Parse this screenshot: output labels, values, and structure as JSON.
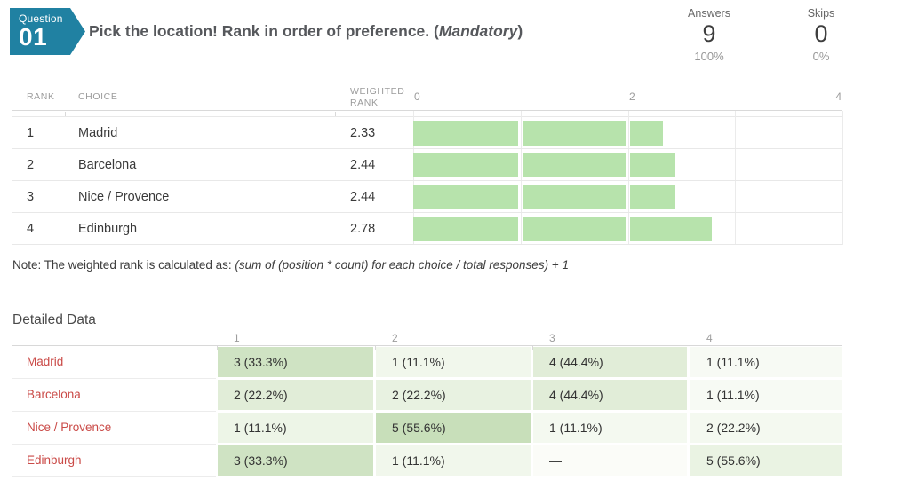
{
  "question": {
    "badge_label": "Question",
    "badge_number": "01",
    "title_prefix": "Pick the location! Rank in order of preference. (",
    "title_em": "Mandatory",
    "title_suffix": ")",
    "stats": [
      {
        "label": "Answers",
        "value": "9",
        "pct": "100%"
      },
      {
        "label": "Skips",
        "value": "0",
        "pct": "0%"
      }
    ]
  },
  "rank_table": {
    "headers": {
      "rank": "RANK",
      "choice": "CHOICE",
      "weighted": "WEIGHTED RANK"
    },
    "axis": {
      "ticks": [
        "0",
        "2",
        "4"
      ],
      "max": 4
    },
    "bar_color": "#b7e3ac",
    "rows": [
      {
        "rank": "1",
        "choice": "Madrid",
        "weighted": "2.33",
        "value": 2.33
      },
      {
        "rank": "2",
        "choice": "Barcelona",
        "weighted": "2.44",
        "value": 2.44
      },
      {
        "rank": "3",
        "choice": "Nice / Provence",
        "weighted": "2.44",
        "value": 2.44
      },
      {
        "rank": "4",
        "choice": "Edinburgh",
        "weighted": "2.78",
        "value": 2.78
      }
    ]
  },
  "note": {
    "prefix": "Note: The weighted rank is calculated as: ",
    "formula": "(sum of (position * count) for each choice / total responses) + 1"
  },
  "detailed": {
    "heading": "Detailed Data",
    "columns": [
      "1",
      "2",
      "3",
      "4"
    ],
    "rows": [
      {
        "label": "Madrid",
        "cells": [
          {
            "text": "3 (33.3%)",
            "bg": "#cfe3c3"
          },
          {
            "text": "1 (11.1%)",
            "bg": "#f1f7ec"
          },
          {
            "text": "4 (44.4%)",
            "bg": "#e1edd8"
          },
          {
            "text": "1 (11.1%)",
            "bg": "#f7faf4"
          }
        ]
      },
      {
        "label": "Barcelona",
        "cells": [
          {
            "text": "2 (22.2%)",
            "bg": "#e1edd8"
          },
          {
            "text": "2 (22.2%)",
            "bg": "#e8f2e1"
          },
          {
            "text": "4 (44.4%)",
            "bg": "#e1edd8"
          },
          {
            "text": "1 (11.1%)",
            "bg": "#f7faf4"
          }
        ]
      },
      {
        "label": "Nice / Provence",
        "cells": [
          {
            "text": "1 (11.1%)",
            "bg": "#edf5e7"
          },
          {
            "text": "5 (55.6%)",
            "bg": "#c8dfba"
          },
          {
            "text": "1 (11.1%)",
            "bg": "#f4f9f0"
          },
          {
            "text": "2 (22.2%)",
            "bg": "#f4f9f0"
          }
        ]
      },
      {
        "label": "Edinburgh",
        "cells": [
          {
            "text": "3 (33.3%)",
            "bg": "#cfe3c3"
          },
          {
            "text": "1 (11.1%)",
            "bg": "#f1f7ec"
          },
          {
            "text": "—",
            "bg": "#fbfcf8"
          },
          {
            "text": "5 (55.6%)",
            "bg": "#eaf3e3"
          }
        ]
      }
    ]
  },
  "chart_data": {
    "type": "bar",
    "orientation": "horizontal",
    "title": "Pick the location! Rank in order of preference. (Mandatory)",
    "categories": [
      "Madrid",
      "Barcelona",
      "Nice / Provence",
      "Edinburgh"
    ],
    "values": [
      2.33,
      2.44,
      2.44,
      2.78
    ],
    "value_label": "Weighted Rank",
    "xlim": [
      0,
      4
    ],
    "x_ticks": [
      0,
      2,
      4
    ],
    "grid": true,
    "bar_color": "#b7e3ac",
    "answers": {
      "count": 9,
      "pct": "100%"
    },
    "skips": {
      "count": 0,
      "pct": "0%"
    },
    "note": "The weighted rank is calculated as: (sum of (position * count) for each choice / total responses) + 1",
    "detail_table": {
      "type": "table",
      "columns": [
        "1",
        "2",
        "3",
        "4"
      ],
      "rows": [
        {
          "label": "Madrid",
          "cells": [
            "3 (33.3%)",
            "1 (11.1%)",
            "4 (44.4%)",
            "1 (11.1%)"
          ]
        },
        {
          "label": "Barcelona",
          "cells": [
            "2 (22.2%)",
            "2 (22.2%)",
            "4 (44.4%)",
            "1 (11.1%)"
          ]
        },
        {
          "label": "Nice / Provence",
          "cells": [
            "1 (11.1%)",
            "5 (55.6%)",
            "1 (11.1%)",
            "2 (22.2%)"
          ]
        },
        {
          "label": "Edinburgh",
          "cells": [
            "3 (33.3%)",
            "1 (11.1%)",
            "—",
            "5 (55.6%)"
          ]
        }
      ]
    }
  }
}
